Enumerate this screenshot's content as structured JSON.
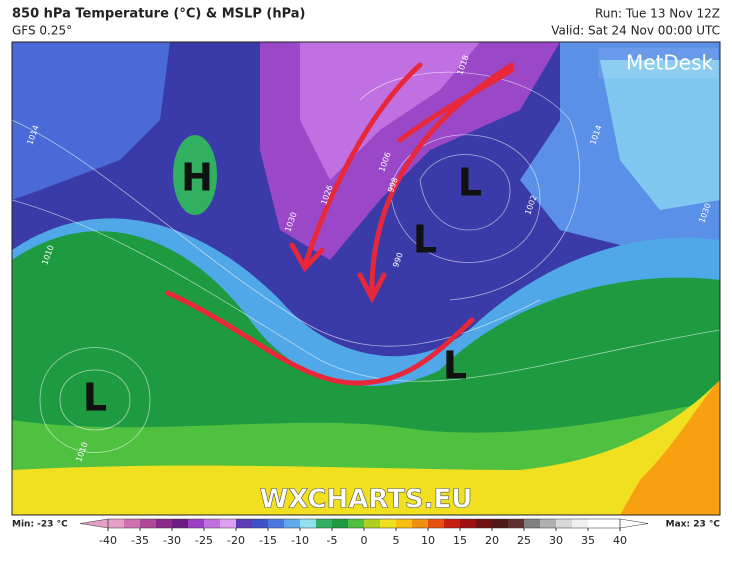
{
  "header": {
    "title": "850 hPa Temperature (°C) & MSLP (hPa)",
    "model": "GFS 0.25°",
    "run": "Run: Tue 13 Nov 12Z",
    "valid": "Valid: Sat 24 Nov 00:00 UTC"
  },
  "logo": "MetDesk",
  "watermark": "WXCHARTS.EU",
  "pressure_centres": [
    {
      "label": "H"
    },
    {
      "label": "L"
    },
    {
      "label": "L"
    },
    {
      "label": "L"
    },
    {
      "label": "L"
    }
  ],
  "isobar_labels": [
    "1014",
    "1030",
    "1026",
    "1018",
    "1002",
    "1006",
    "998",
    "990",
    "1010",
    "1014",
    "1030",
    "1010"
  ],
  "colorbar": {
    "min_label": "Min: -23 °C",
    "max_label": "Max: 23 °C",
    "ticks": [
      -40,
      -35,
      -30,
      -25,
      -20,
      -15,
      -10,
      -5,
      0,
      5,
      10,
      15,
      20,
      25,
      30,
      35,
      40
    ],
    "colors": [
      "#e6a0c8",
      "#d070b0",
      "#b04898",
      "#8a2a8a",
      "#6a1c84",
      "#9a40c0",
      "#c070e0",
      "#e0a0f0",
      "#5a3cb8",
      "#4050c8",
      "#4a78e0",
      "#60a8f0",
      "#90e0f0",
      "#30b060",
      "#1e9a40",
      "#50c040",
      "#b0d020",
      "#f0e020",
      "#f8c010",
      "#f09010",
      "#e85010",
      "#c82010",
      "#a01010",
      "#701010",
      "#501818",
      "#603030",
      "#808080",
      "#b0b0b0",
      "#d8d8d8",
      "#f0f0f0",
      "#ffffff",
      "#ffffff"
    ]
  }
}
